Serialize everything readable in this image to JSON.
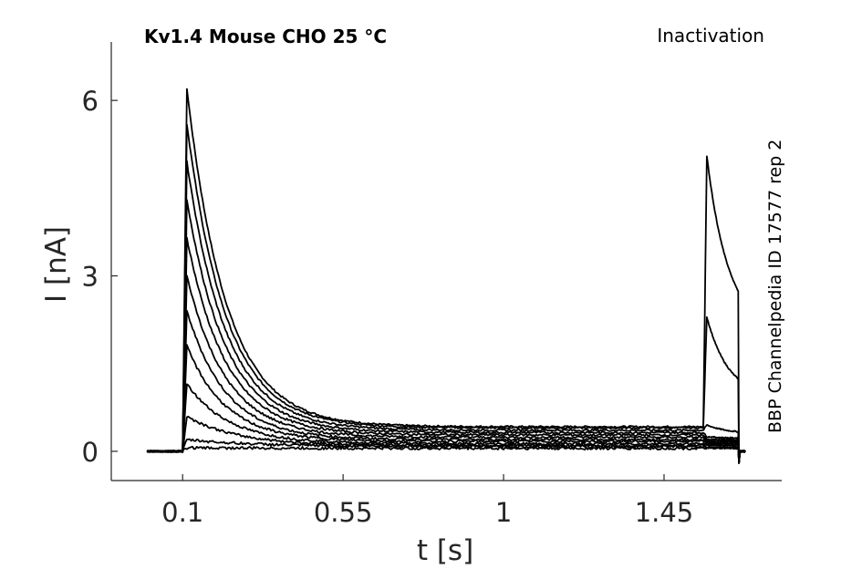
{
  "chart_data": {
    "type": "line",
    "title": "Kv1.4  Mouse  CHO  25 °C",
    "subtitle": "Inactivation",
    "side_label": "BBP Channelpedia ID 17577 rep 2",
    "xlabel": "t [s]",
    "ylabel": "I [nA]",
    "xlim": [
      -0.1,
      1.78
    ],
    "ylim": [
      -0.5,
      7.0
    ],
    "x_ticks": [
      0.1,
      0.55,
      1,
      1.45
    ],
    "x_tick_labels": [
      "0.1",
      "0.55",
      "1",
      "1.45"
    ],
    "y_ticks": [
      0,
      3,
      6
    ],
    "y_tick_labels": [
      "0",
      "3",
      "6"
    ],
    "grid": false,
    "legend": "none",
    "line_color": "#000000",
    "protocol": {
      "baseline_start": 0.0,
      "step_on": 0.1,
      "test_on": 1.56,
      "end": 1.66
    },
    "series": [
      {
        "pre_peak": 6.2,
        "pre_tau": 0.11,
        "pre_plateau": 0.42,
        "test_peak": 5.05,
        "test_end": 2.05
      },
      {
        "pre_peak": 5.6,
        "pre_tau": 0.11,
        "pre_plateau": 0.4,
        "test_peak": 2.3,
        "test_end": 0.92
      },
      {
        "pre_peak": 4.95,
        "pre_tau": 0.11,
        "pre_plateau": 0.36,
        "test_peak": 0.45,
        "test_end": 0.3
      },
      {
        "pre_peak": 4.3,
        "pre_tau": 0.11,
        "pre_plateau": 0.32,
        "test_peak": 0.25,
        "test_end": 0.22
      },
      {
        "pre_peak": 3.65,
        "pre_tau": 0.11,
        "pre_plateau": 0.28,
        "test_peak": 0.2,
        "test_end": 0.2
      },
      {
        "pre_peak": 3.0,
        "pre_tau": 0.11,
        "pre_plateau": 0.24,
        "test_peak": 0.18,
        "test_end": 0.18
      },
      {
        "pre_peak": 2.4,
        "pre_tau": 0.11,
        "pre_plateau": 0.2,
        "test_peak": 0.16,
        "test_end": 0.16
      },
      {
        "pre_peak": 1.8,
        "pre_tau": 0.11,
        "pre_plateau": 0.17,
        "test_peak": 0.14,
        "test_end": 0.14
      },
      {
        "pre_peak": 1.15,
        "pre_tau": 0.12,
        "pre_plateau": 0.13,
        "test_peak": 0.12,
        "test_end": 0.12
      },
      {
        "pre_peak": 0.6,
        "pre_tau": 0.14,
        "pre_plateau": 0.1,
        "test_peak": 0.1,
        "test_end": 0.1
      },
      {
        "pre_peak": 0.2,
        "pre_tau": 0.2,
        "pre_plateau": 0.08,
        "test_peak": 0.07,
        "test_end": 0.07
      },
      {
        "pre_peak": 0.06,
        "pre_tau": 0.3,
        "pre_plateau": 0.05,
        "test_peak": 0.05,
        "test_end": 0.05
      }
    ]
  }
}
